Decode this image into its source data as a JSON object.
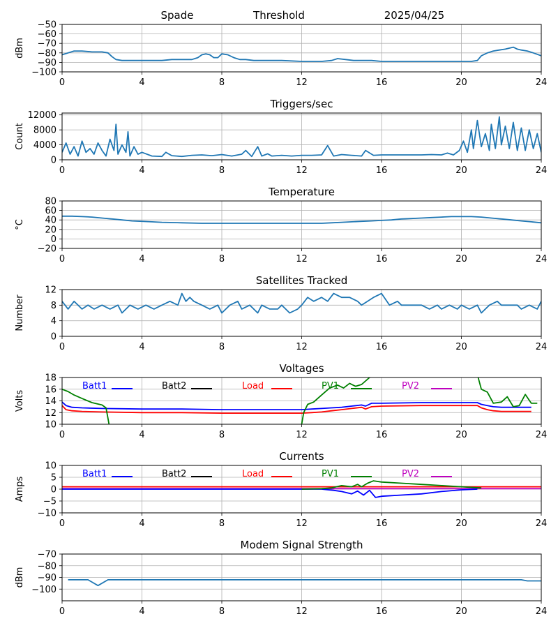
{
  "header": {
    "station": "Spade",
    "mode": "Threshold",
    "date": "2025/04/25"
  },
  "colors": {
    "main": "#1f77b4",
    "batt1": "#0000ff",
    "batt2": "#000000",
    "load": "#ff0000",
    "pv1": "#008000",
    "pv2": "#bf00bf",
    "grid": "#b0b0b0"
  },
  "chart_data": [
    {
      "type": "line",
      "title": "",
      "ylabel": "dBm",
      "xlim": [
        0,
        24
      ],
      "ylim": [
        -100,
        -50
      ],
      "grid": true,
      "x_ticks": [
        0,
        4,
        8,
        12,
        16,
        20,
        24
      ],
      "y_ticks": [
        -100,
        -90,
        -80,
        -70,
        -60,
        -50
      ],
      "series": [
        {
          "x": [
            0,
            0.3,
            0.6,
            1,
            1.5,
            2,
            2.3,
            2.5,
            2.7,
            3,
            3.5,
            4,
            4.5,
            5,
            5.5,
            6,
            6.5,
            6.8,
            7,
            7.2,
            7.4,
            7.6,
            7.8,
            8,
            8.3,
            8.6,
            8.9,
            9.2,
            9.6,
            10,
            11,
            12,
            12.5,
            13,
            13.5,
            13.8,
            14.2,
            14.6,
            15,
            15.5,
            16,
            17,
            18,
            18.5,
            19,
            19.5,
            20,
            20.5,
            20.8,
            21,
            21.3,
            21.6,
            21.9,
            22.2,
            22.4,
            22.6,
            22.8,
            23,
            23.3,
            23.6,
            24
          ],
          "y": [
            -82,
            -80,
            -78,
            -78,
            -79,
            -79,
            -80,
            -84,
            -87,
            -88,
            -88,
            -88,
            -88,
            -88,
            -87,
            -87,
            -87,
            -85,
            -82,
            -81,
            -82,
            -85,
            -85,
            -81,
            -82,
            -85,
            -87,
            -87,
            -88,
            -88,
            -88,
            -89,
            -89,
            -89,
            -88,
            -86,
            -87,
            -88,
            -88,
            -88,
            -89,
            -89,
            -89,
            -89,
            -89,
            -89,
            -89,
            -89,
            -88,
            -83,
            -80,
            -78,
            -77,
            -76,
            -75,
            -74,
            -76,
            -77,
            -78,
            -80,
            -83
          ]
        }
      ]
    },
    {
      "type": "line",
      "title": "Triggers/sec",
      "ylabel": "Count",
      "xlim": [
        0,
        24
      ],
      "ylim": [
        0,
        12500
      ],
      "grid": true,
      "x_ticks": [
        0,
        4,
        8,
        12,
        16,
        20,
        24
      ],
      "y_ticks": [
        0,
        4000,
        8000,
        12000
      ],
      "series": [
        {
          "x": [
            0,
            0.2,
            0.4,
            0.6,
            0.8,
            1,
            1.2,
            1.4,
            1.6,
            1.8,
            2,
            2.2,
            2.4,
            2.6,
            2.7,
            2.8,
            3,
            3.2,
            3.3,
            3.4,
            3.6,
            3.8,
            4,
            4.5,
            5,
            5.2,
            5.5,
            6,
            6.5,
            7,
            7.5,
            8,
            8.5,
            9,
            9.2,
            9.5,
            9.8,
            10,
            10.3,
            10.5,
            11,
            11.5,
            12,
            12.5,
            13,
            13.3,
            13.6,
            14,
            14.5,
            15,
            15.2,
            15.6,
            16,
            17,
            18,
            18.5,
            19,
            19.3,
            19.6,
            19.9,
            20.1,
            20.3,
            20.5,
            20.6,
            20.8,
            21,
            21.2,
            21.4,
            21.5,
            21.7,
            21.9,
            22,
            22.2,
            22.4,
            22.6,
            22.8,
            23,
            23.2,
            23.4,
            23.6,
            23.8,
            24
          ],
          "y": [
            2000,
            4500,
            1500,
            3500,
            1000,
            5000,
            2000,
            3000,
            1500,
            4500,
            2500,
            1000,
            5500,
            2500,
            9500,
            1500,
            4000,
            2000,
            7500,
            1000,
            3500,
            1500,
            2000,
            1000,
            900,
            2000,
            1100,
            900,
            1200,
            1300,
            1100,
            1400,
            1000,
            1500,
            2500,
            900,
            3500,
            1000,
            1600,
            1000,
            1200,
            1000,
            1200,
            1200,
            1300,
            3800,
            1000,
            1400,
            1200,
            1000,
            2500,
            1200,
            1300,
            1300,
            1300,
            1400,
            1300,
            1800,
            1300,
            2500,
            5000,
            2000,
            8000,
            3000,
            10500,
            3500,
            7000,
            2500,
            9500,
            3000,
            11500,
            4000,
            9000,
            3000,
            10000,
            2500,
            8500,
            2500,
            8000,
            3000,
            7000,
            2000
          ]
        }
      ]
    },
    {
      "type": "line",
      "title": "Temperature",
      "ylabel": "°C",
      "xlim": [
        0,
        24
      ],
      "ylim": [
        -20,
        80
      ],
      "grid": true,
      "x_ticks": [
        0,
        4,
        8,
        12,
        16,
        20,
        24
      ],
      "y_ticks": [
        -20,
        0,
        20,
        40,
        60,
        80
      ],
      "series": [
        {
          "x": [
            0,
            0.5,
            1,
            1.5,
            2,
            2.5,
            3,
            3.5,
            4,
            4.5,
            5,
            6,
            7,
            8,
            9,
            10,
            11,
            12,
            12.5,
            13,
            13.5,
            14,
            14.5,
            15,
            15.5,
            16,
            16.5,
            17,
            17.5,
            18,
            18.5,
            19,
            19.5,
            20,
            20.5,
            21,
            21.5,
            22,
            22.5,
            23,
            23.5,
            24
          ],
          "y": [
            48,
            48,
            47,
            46,
            44,
            42,
            40,
            38,
            37,
            36,
            35,
            34,
            33,
            33,
            33,
            33,
            33,
            33,
            33,
            33,
            34,
            35,
            36,
            37,
            38,
            39,
            40,
            42,
            43,
            44,
            45,
            46,
            47,
            47,
            47,
            46,
            44,
            42,
            40,
            38,
            36,
            34
          ]
        }
      ]
    },
    {
      "type": "line",
      "title": "Satellites Tracked",
      "ylabel": "Number",
      "xlim": [
        0,
        24
      ],
      "ylim": [
        0,
        12
      ],
      "grid": true,
      "x_ticks": [
        0,
        4,
        8,
        12,
        16,
        20,
        24
      ],
      "y_ticks": [
        0,
        4,
        8,
        12
      ],
      "series": [
        {
          "x": [
            0,
            0.3,
            0.6,
            1,
            1.3,
            1.6,
            2,
            2.4,
            2.8,
            3,
            3.4,
            3.8,
            4.2,
            4.6,
            5,
            5.4,
            5.8,
            6,
            6.2,
            6.4,
            6.6,
            7,
            7.4,
            7.8,
            8,
            8.4,
            8.8,
            9,
            9.4,
            9.8,
            10,
            10.4,
            10.8,
            11,
            11.4,
            11.8,
            12,
            12.3,
            12.6,
            13,
            13.3,
            13.6,
            14,
            14.4,
            14.8,
            15,
            15.3,
            15.6,
            16,
            16.4,
            16.8,
            17,
            17.4,
            17.8,
            18,
            18.4,
            18.8,
            19,
            19.4,
            19.8,
            20,
            20.4,
            20.8,
            21,
            21.4,
            21.8,
            22,
            22.4,
            22.8,
            23,
            23.4,
            23.8,
            24
          ],
          "y": [
            9,
            7,
            9,
            7,
            8,
            7,
            8,
            7,
            8,
            6,
            8,
            7,
            8,
            7,
            8,
            9,
            8,
            11,
            9,
            10,
            9,
            8,
            7,
            8,
            6,
            8,
            9,
            7,
            8,
            6,
            8,
            7,
            7,
            8,
            6,
            7,
            8,
            10,
            9,
            10,
            9,
            11,
            10,
            10,
            9,
            8,
            9,
            10,
            11,
            8,
            9,
            8,
            8,
            8,
            8,
            7,
            8,
            7,
            8,
            7,
            8,
            7,
            8,
            6,
            8,
            9,
            8,
            8,
            8,
            7,
            8,
            7,
            9
          ]
        }
      ]
    },
    {
      "type": "line",
      "title": "Voltages",
      "ylabel": "Volts",
      "xlim": [
        0,
        24
      ],
      "ylim": [
        10,
        18
      ],
      "grid": true,
      "x_ticks": [
        0,
        4,
        8,
        12,
        16,
        20,
        24
      ],
      "y_ticks": [
        10,
        12,
        14,
        16,
        18
      ],
      "legend": [
        "Batt1",
        "Batt2",
        "Load",
        "PV1",
        "PV2"
      ],
      "series": [
        {
          "name": "Batt1",
          "x": [
            0,
            0.2,
            0.5,
            1,
            2,
            4,
            6,
            8,
            10,
            12,
            12.5,
            13,
            13.5,
            14,
            14.5,
            15,
            15.2,
            15.5,
            16,
            18,
            20,
            20.8,
            21,
            21.3,
            21.6,
            22,
            23,
            23.5
          ],
          "y": [
            13.8,
            13.2,
            12.9,
            12.8,
            12.7,
            12.6,
            12.6,
            12.5,
            12.5,
            12.5,
            12.6,
            12.7,
            12.8,
            12.9,
            13.1,
            13.3,
            13.1,
            13.6,
            13.6,
            13.7,
            13.7,
            13.7,
            13.4,
            13.2,
            13.0,
            12.9,
            12.9,
            12.9
          ]
        },
        {
          "name": "Load",
          "x": [
            0,
            0.2,
            0.5,
            1,
            2,
            4,
            6,
            8,
            10,
            12,
            12.5,
            13,
            13.5,
            14,
            14.5,
            15,
            15.2,
            15.5,
            16,
            18,
            20,
            20.8,
            21,
            21.3,
            21.6,
            22,
            23,
            23.5
          ],
          "y": [
            13.2,
            12.5,
            12.3,
            12.2,
            12.1,
            12.0,
            12.0,
            11.9,
            11.9,
            11.9,
            12.0,
            12.1,
            12.3,
            12.5,
            12.7,
            12.9,
            12.6,
            13.0,
            13.1,
            13.2,
            13.2,
            13.2,
            12.8,
            12.5,
            12.3,
            12.2,
            12.2,
            12.2
          ]
        },
        {
          "name": "PV1",
          "x": [
            0,
            0.3,
            0.6,
            1,
            1.5,
            2,
            2.2,
            2.3,
            2.35
          ],
          "y": [
            16.0,
            15.6,
            15.0,
            14.4,
            13.7,
            13.3,
            12.8,
            11.0,
            10.0
          ]
        },
        {
          "name": "PV1",
          "x": [
            12,
            12.1,
            12.3,
            12.6,
            13,
            13.4,
            13.8,
            14.1,
            14.4,
            14.7,
            15,
            15.4,
            15.8
          ],
          "y": [
            10.0,
            12.0,
            13.4,
            13.8,
            15.0,
            16.2,
            16.7,
            16.2,
            17.0,
            16.5,
            16.8,
            18.0,
            18.5
          ]
        },
        {
          "name": "PV1",
          "x": [
            20.8,
            21,
            21.3,
            21.6,
            22,
            22.3,
            22.6,
            22.9,
            23.2,
            23.5,
            23.8
          ],
          "y": [
            18.5,
            16.0,
            15.5,
            13.6,
            13.8,
            14.7,
            13.0,
            13.2,
            15.1,
            13.6,
            13.6
          ]
        }
      ]
    },
    {
      "type": "line",
      "title": "Currents",
      "ylabel": "Amps",
      "xlim": [
        0,
        24
      ],
      "ylim": [
        -10,
        10
      ],
      "grid": true,
      "x_ticks": [
        0,
        4,
        8,
        12,
        16,
        20,
        24
      ],
      "y_ticks": [
        -10,
        -5,
        0,
        5,
        10
      ],
      "legend": [
        "Batt1",
        "Batt2",
        "Load",
        "PV1",
        "PV2"
      ],
      "series": [
        {
          "name": "Load",
          "x": [
            0,
            2,
            4,
            6,
            8,
            10,
            12,
            14,
            16,
            18,
            20,
            22,
            24
          ],
          "y": [
            1,
            1,
            1,
            1,
            1,
            1,
            1,
            1,
            1,
            1,
            1,
            1,
            1
          ]
        },
        {
          "name": "PV2",
          "x": [
            0,
            4,
            8,
            12,
            16,
            20,
            24
          ],
          "y": [
            0.2,
            0.2,
            0.2,
            0.2,
            0.2,
            0.2,
            0.2
          ]
        },
        {
          "name": "Batt1",
          "x": [
            0,
            12,
            13,
            13.6,
            14,
            14.5,
            14.8,
            15.1,
            15.4,
            15.7,
            16,
            17,
            18,
            19,
            20,
            20.8
          ],
          "y": [
            0,
            0,
            0,
            -0.5,
            -1,
            -2,
            -0.8,
            -2.5,
            -0.5,
            -3.5,
            -3,
            -2.5,
            -2,
            -1,
            -0.3,
            0
          ]
        },
        {
          "name": "PV1",
          "x": [
            12,
            13,
            13.5,
            14,
            14.5,
            14.8,
            15,
            15.3,
            15.6,
            16,
            17,
            18,
            19,
            20,
            21
          ],
          "y": [
            0,
            0.2,
            0.5,
            1.5,
            1,
            2,
            1,
            2.5,
            3.5,
            3,
            2.5,
            2,
            1.5,
            1,
            0.5
          ]
        }
      ]
    },
    {
      "type": "line",
      "title": "Modem Signal Strength",
      "ylabel": "dBm",
      "xlim": [
        0,
        24
      ],
      "ylim": [
        -110,
        -70
      ],
      "grid": true,
      "x_ticks": [
        0,
        4,
        8,
        12,
        16,
        20,
        24
      ],
      "y_ticks": [
        -100,
        -90,
        -80,
        -70
      ],
      "series": [
        {
          "x": [
            0.3,
            1,
            1.3,
            1.8,
            2.3,
            2.8,
            4,
            8,
            12,
            16,
            20,
            23,
            23.3,
            24
          ],
          "y": [
            -92,
            -92,
            -92,
            -97,
            -92,
            -92,
            -92,
            -92,
            -92,
            -92,
            -92,
            -92,
            -93,
            -93
          ]
        }
      ]
    }
  ]
}
